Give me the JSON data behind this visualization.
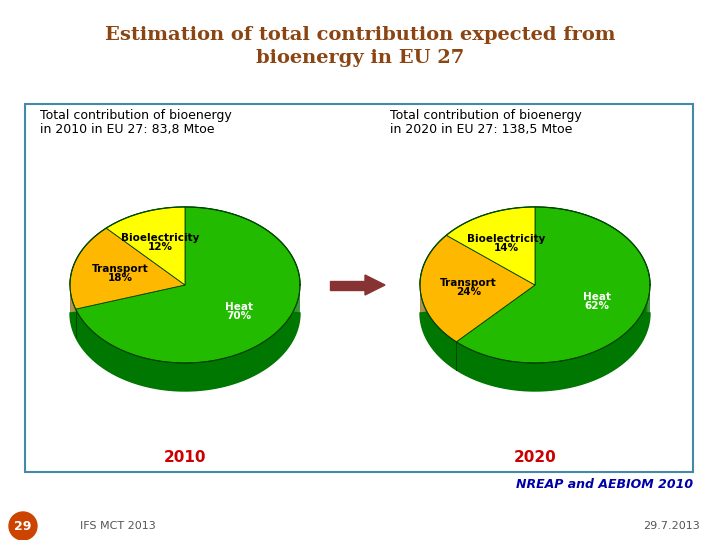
{
  "title_line1": "Estimation of total contribution expected from",
  "title_line2": "bioenergy in EU 27",
  "title_color": "#8B4513",
  "title_fontsize": 14,
  "box_color": "#FFFFFF",
  "box_edge_color": "#4488AA",
  "pie1_title_line1": "Total contribution of bioenergy",
  "pie1_title_line2": "in 2010 in EU 27: 83,8 Mtoe",
  "pie2_title_line1": "Total contribution of bioenergy",
  "pie2_title_line2": "in 2020 in EU 27: 138,5 Mtoe",
  "pie1_values": [
    70,
    18,
    12
  ],
  "pie2_values": [
    62,
    24,
    14
  ],
  "pie_labels": [
    "Heat",
    "Transport",
    "Bioelectricity"
  ],
  "pie1_pct_labels": [
    "70%",
    "18%",
    "12%"
  ],
  "pie2_pct_labels": [
    "62%",
    "24%",
    "14%"
  ],
  "pie_colors": [
    "#22BB00",
    "#FFB800",
    "#FFFF00"
  ],
  "pie_side_colors": [
    "#007700",
    "#886600",
    "#888800"
  ],
  "pie_edge_color": "#004400",
  "pie1_year": "2010",
  "pie2_year": "2020",
  "year_color": "#CC0000",
  "year_fontsize": 11,
  "arrow_color": "#883333",
  "source_text": "NREAP and AEBIOM 2010",
  "source_color": "#0000AA",
  "source_fontsize": 9,
  "footer_left": "IFS MCT 2013",
  "footer_right": "29.7.2013",
  "footer_fontsize": 8,
  "page_num": "29",
  "page_circle_color": "#CC4400",
  "bg_color": "#FFFFFF"
}
